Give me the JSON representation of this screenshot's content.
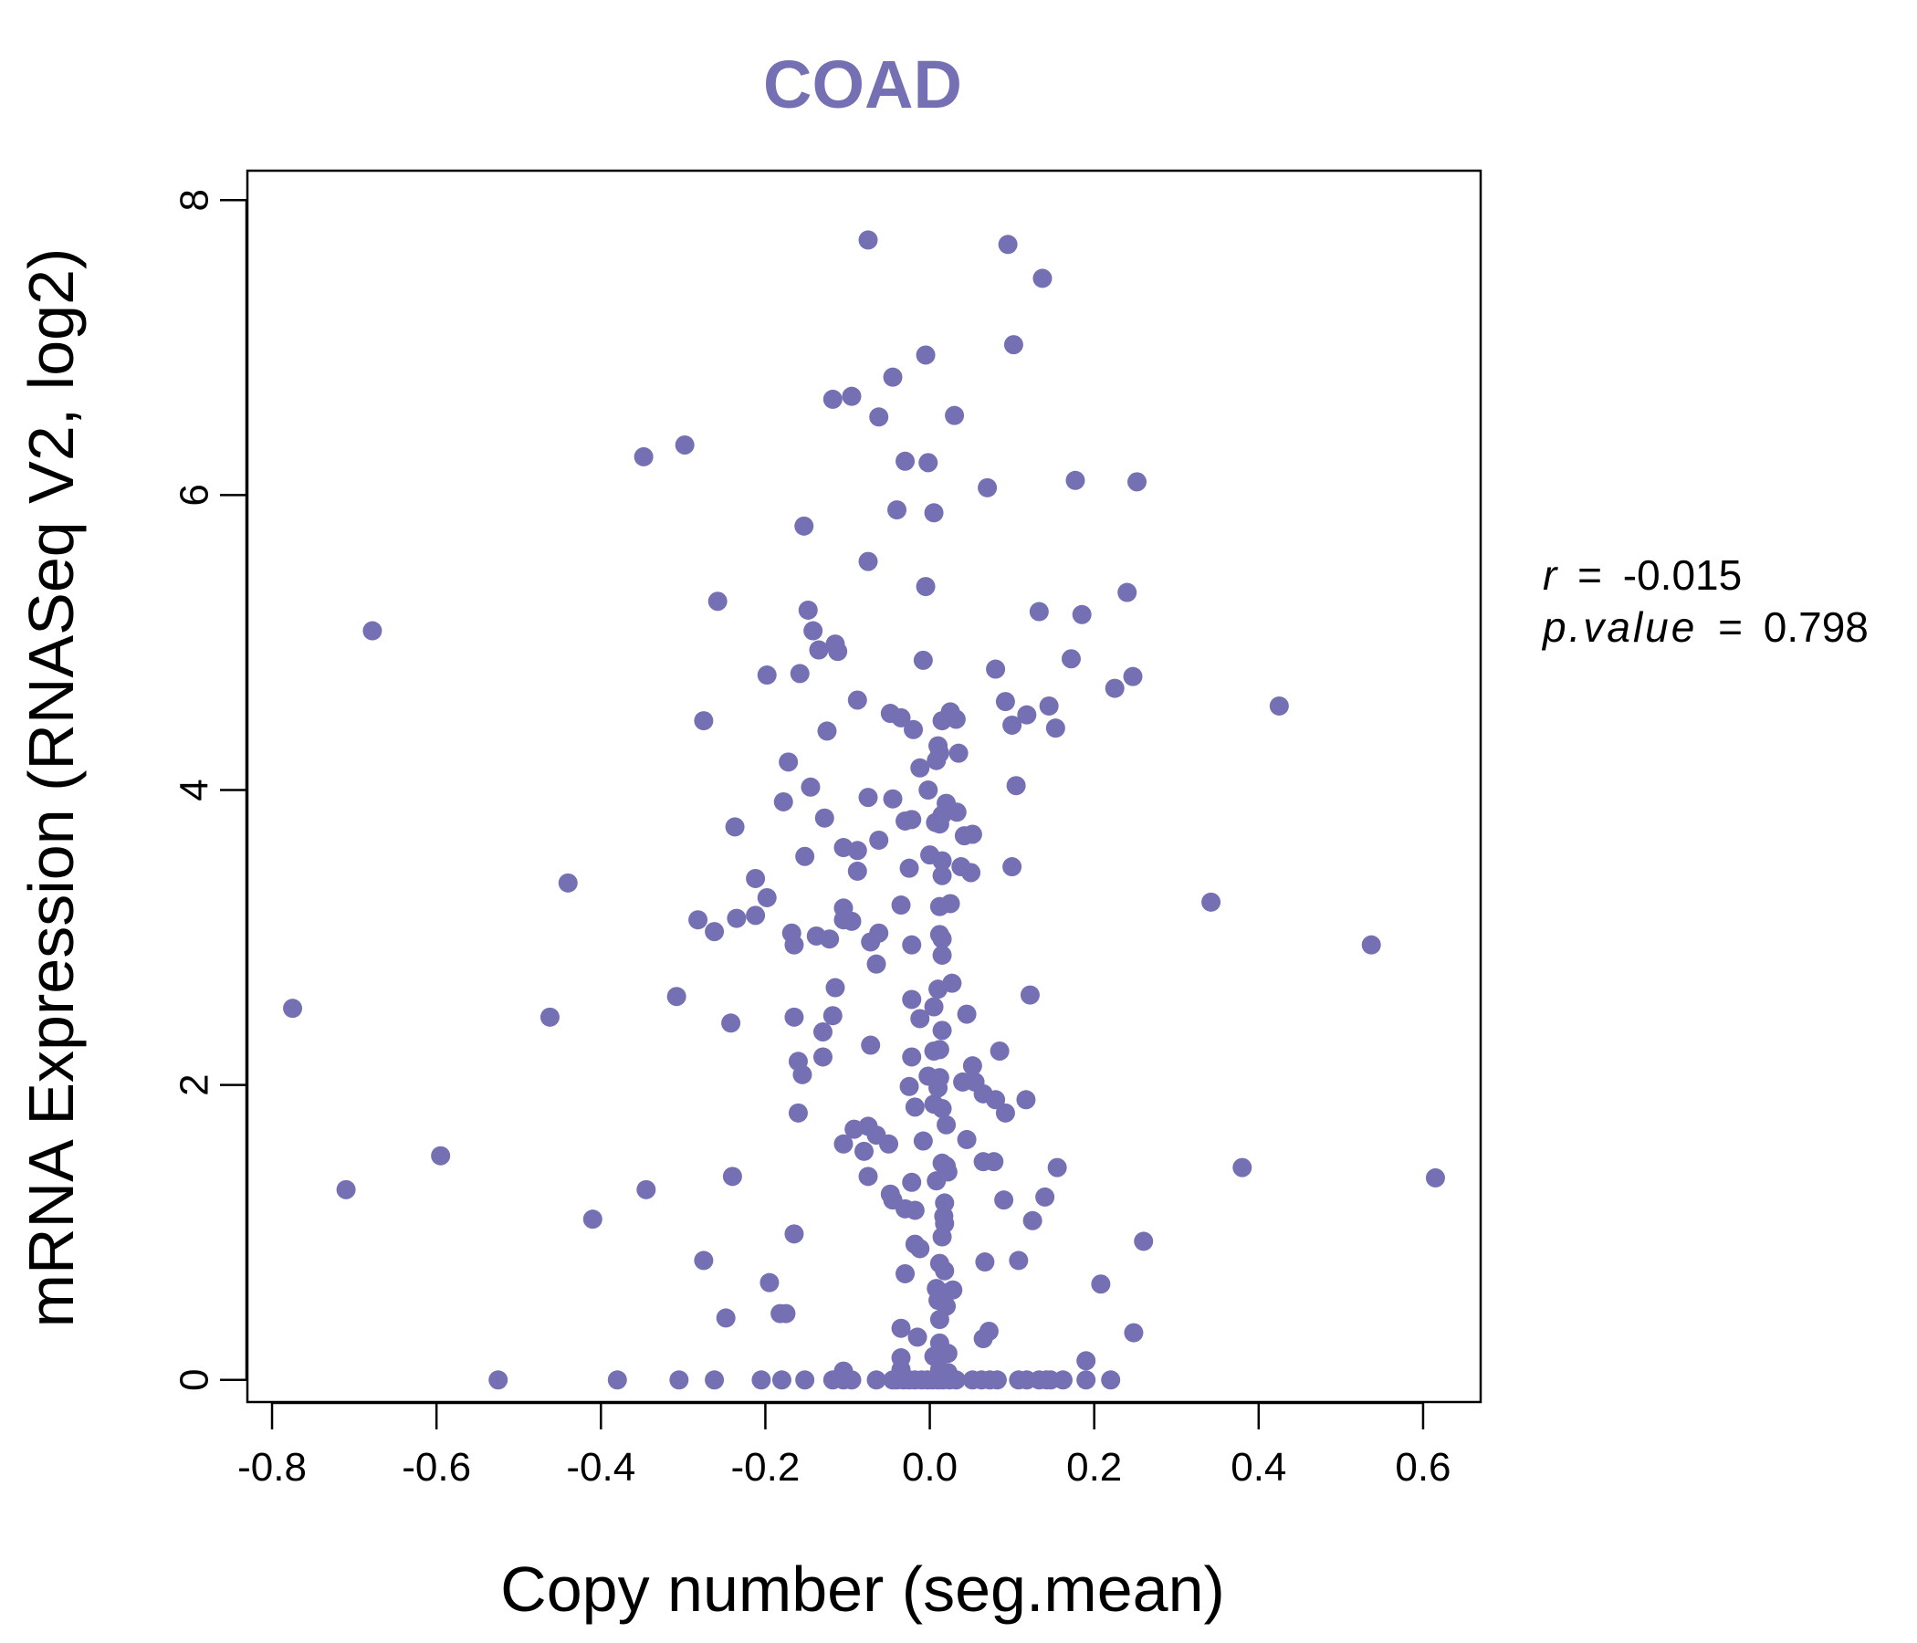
{
  "chart_data": {
    "type": "scatter",
    "title": "COAD",
    "xlabel": "Copy number (seg.mean)",
    "ylabel": "mRNA Expression (RNASeq V2, log2)",
    "xlim": [
      -0.83,
      0.67
    ],
    "ylim": [
      -0.15,
      8.2
    ],
    "x_ticks": [
      -0.8,
      -0.6,
      -0.4,
      -0.2,
      0.0,
      0.2,
      0.4,
      0.6
    ],
    "x_tick_labels": [
      "-0.8",
      "-0.6",
      "-0.4",
      "-0.2",
      "0.0",
      "0.2",
      "0.4",
      "0.6"
    ],
    "y_ticks": [
      0,
      2,
      4,
      6,
      8
    ],
    "y_tick_labels": [
      "0",
      "2",
      "4",
      "6",
      "8"
    ],
    "point_color": "#7570b3",
    "grid": false,
    "annotations": {
      "r_label": "r",
      "r_value": "-0.015",
      "p_label": "p.value",
      "p_value": "0.798",
      "equals": "="
    },
    "points": [
      [
        -0.075,
        7.73
      ],
      [
        0.095,
        7.7
      ],
      [
        0.137,
        7.47
      ],
      [
        0.102,
        7.02
      ],
      [
        -0.005,
        6.95
      ],
      [
        -0.045,
        6.8
      ],
      [
        -0.095,
        6.67
      ],
      [
        -0.118,
        6.65
      ],
      [
        -0.062,
        6.53
      ],
      [
        0.03,
        6.54
      ],
      [
        -0.298,
        6.34
      ],
      [
        -0.348,
        6.26
      ],
      [
        -0.03,
        6.23
      ],
      [
        -0.002,
        6.22
      ],
      [
        0.177,
        6.1
      ],
      [
        0.252,
        6.09
      ],
      [
        0.07,
        6.05
      ],
      [
        -0.04,
        5.9
      ],
      [
        0.005,
        5.88
      ],
      [
        -0.153,
        5.79
      ],
      [
        -0.075,
        5.55
      ],
      [
        -0.005,
        5.38
      ],
      [
        0.24,
        5.34
      ],
      [
        -0.258,
        5.28
      ],
      [
        -0.148,
        5.22
      ],
      [
        0.133,
        5.21
      ],
      [
        0.185,
        5.19
      ],
      [
        -0.678,
        5.08
      ],
      [
        -0.142,
        5.08
      ],
      [
        -0.115,
        4.99
      ],
      [
        -0.135,
        4.95
      ],
      [
        -0.112,
        4.94
      ],
      [
        -0.008,
        4.88
      ],
      [
        0.172,
        4.89
      ],
      [
        0.08,
        4.82
      ],
      [
        -0.198,
        4.78
      ],
      [
        -0.158,
        4.79
      ],
      [
        0.247,
        4.77
      ],
      [
        0.225,
        4.69
      ],
      [
        -0.088,
        4.61
      ],
      [
        0.092,
        4.6
      ],
      [
        0.145,
        4.57
      ],
      [
        0.425,
        4.57
      ],
      [
        -0.048,
        4.52
      ],
      [
        0.025,
        4.53
      ],
      [
        -0.035,
        4.49
      ],
      [
        0.118,
        4.51
      ],
      [
        -0.275,
        4.47
      ],
      [
        0.015,
        4.47
      ],
      [
        0.032,
        4.48
      ],
      [
        0.1,
        4.44
      ],
      [
        -0.02,
        4.41
      ],
      [
        0.153,
        4.42
      ],
      [
        -0.125,
        4.4
      ],
      [
        0.01,
        4.3
      ],
      [
        0.012,
        4.25
      ],
      [
        0.035,
        4.25
      ],
      [
        0.008,
        4.2
      ],
      [
        -0.172,
        4.19
      ],
      [
        -0.012,
        4.15
      ],
      [
        0.105,
        4.03
      ],
      [
        -0.145,
        4.02
      ],
      [
        -0.002,
        4.0
      ],
      [
        -0.075,
        3.95
      ],
      [
        -0.045,
        3.94
      ],
      [
        -0.178,
        3.92
      ],
      [
        0.02,
        3.91
      ],
      [
        0.033,
        3.85
      ],
      [
        0.015,
        3.83
      ],
      [
        -0.128,
        3.81
      ],
      [
        -0.03,
        3.79
      ],
      [
        -0.022,
        3.8
      ],
      [
        0.007,
        3.78
      ],
      [
        0.012,
        3.77
      ],
      [
        -0.237,
        3.75
      ],
      [
        0.052,
        3.7
      ],
      [
        0.042,
        3.69
      ],
      [
        -0.062,
        3.66
      ],
      [
        -0.105,
        3.61
      ],
      [
        -0.088,
        3.59
      ],
      [
        -0.0,
        3.56
      ],
      [
        -0.152,
        3.55
      ],
      [
        0.015,
        3.52
      ],
      [
        -0.025,
        3.47
      ],
      [
        0.038,
        3.48
      ],
      [
        0.1,
        3.48
      ],
      [
        -0.088,
        3.45
      ],
      [
        0.05,
        3.44
      ],
      [
        0.015,
        3.42
      ],
      [
        -0.212,
        3.4
      ],
      [
        -0.44,
        3.37
      ],
      [
        0.342,
        3.24
      ],
      [
        -0.198,
        3.27
      ],
      [
        0.025,
        3.23
      ],
      [
        -0.035,
        3.22
      ],
      [
        0.012,
        3.21
      ],
      [
        -0.105,
        3.2
      ],
      [
        -0.105,
        3.12
      ],
      [
        -0.095,
        3.11
      ],
      [
        -0.282,
        3.12
      ],
      [
        -0.235,
        3.13
      ],
      [
        -0.212,
        3.15
      ],
      [
        -0.262,
        3.04
      ],
      [
        -0.168,
        3.03
      ],
      [
        -0.138,
        3.01
      ],
      [
        -0.122,
        2.99
      ],
      [
        -0.062,
        3.03
      ],
      [
        0.012,
        3.02
      ],
      [
        0.015,
        2.99
      ],
      [
        -0.072,
        2.97
      ],
      [
        -0.022,
        2.95
      ],
      [
        -0.165,
        2.95
      ],
      [
        0.537,
        2.95
      ],
      [
        0.015,
        2.88
      ],
      [
        -0.065,
        2.82
      ],
      [
        0.027,
        2.69
      ],
      [
        -0.115,
        2.66
      ],
      [
        0.01,
        2.65
      ],
      [
        0.122,
        2.61
      ],
      [
        -0.308,
        2.6
      ],
      [
        -0.022,
        2.58
      ],
      [
        0.005,
        2.53
      ],
      [
        -0.775,
        2.52
      ],
      [
        0.045,
        2.48
      ],
      [
        -0.118,
        2.47
      ],
      [
        -0.165,
        2.46
      ],
      [
        -0.462,
        2.46
      ],
      [
        -0.012,
        2.45
      ],
      [
        -0.242,
        2.42
      ],
      [
        0.015,
        2.37
      ],
      [
        -0.13,
        2.36
      ],
      [
        -0.072,
        2.27
      ],
      [
        0.085,
        2.23
      ],
      [
        0.012,
        2.24
      ],
      [
        0.005,
        2.23
      ],
      [
        -0.13,
        2.19
      ],
      [
        -0.022,
        2.19
      ],
      [
        -0.16,
        2.16
      ],
      [
        0.052,
        2.13
      ],
      [
        -0.155,
        2.07
      ],
      [
        -0.002,
        2.06
      ],
      [
        0.012,
        2.05
      ],
      [
        0.04,
        2.02
      ],
      [
        0.055,
        2.02
      ],
      [
        -0.025,
        1.99
      ],
      [
        0.01,
        1.98
      ],
      [
        0.065,
        1.94
      ],
      [
        0.08,
        1.9
      ],
      [
        0.117,
        1.9
      ],
      [
        0.005,
        1.87
      ],
      [
        -0.018,
        1.85
      ],
      [
        0.015,
        1.84
      ],
      [
        0.092,
        1.81
      ],
      [
        -0.16,
        1.81
      ],
      [
        0.02,
        1.73
      ],
      [
        -0.075,
        1.72
      ],
      [
        -0.092,
        1.7
      ],
      [
        -0.065,
        1.66
      ],
      [
        0.045,
        1.63
      ],
      [
        -0.008,
        1.62
      ],
      [
        -0.105,
        1.6
      ],
      [
        -0.05,
        1.6
      ],
      [
        -0.08,
        1.55
      ],
      [
        -0.595,
        1.52
      ],
      [
        0.065,
        1.48
      ],
      [
        0.078,
        1.48
      ],
      [
        0.015,
        1.47
      ],
      [
        0.155,
        1.44
      ],
      [
        0.38,
        1.44
      ],
      [
        0.02,
        1.45
      ],
      [
        0.022,
        1.41
      ],
      [
        -0.075,
        1.38
      ],
      [
        -0.24,
        1.38
      ],
      [
        0.615,
        1.37
      ],
      [
        0.008,
        1.35
      ],
      [
        -0.022,
        1.34
      ],
      [
        -0.345,
        1.29
      ],
      [
        -0.71,
        1.29
      ],
      [
        -0.048,
        1.26
      ],
      [
        0.14,
        1.24
      ],
      [
        0.09,
        1.22
      ],
      [
        -0.045,
        1.22
      ],
      [
        0.018,
        1.2
      ],
      [
        -0.03,
        1.16
      ],
      [
        -0.018,
        1.15
      ],
      [
        0.017,
        1.11
      ],
      [
        -0.41,
        1.09
      ],
      [
        0.125,
        1.08
      ],
      [
        0.018,
        1.06
      ],
      [
        -0.165,
        0.99
      ],
      [
        0.015,
        0.97
      ],
      [
        0.26,
        0.94
      ],
      [
        -0.018,
        0.92
      ],
      [
        -0.012,
        0.89
      ],
      [
        -0.275,
        0.81
      ],
      [
        0.067,
        0.8
      ],
      [
        0.108,
        0.81
      ],
      [
        0.012,
        0.79
      ],
      [
        0.018,
        0.74
      ],
      [
        -0.03,
        0.72
      ],
      [
        0.208,
        0.65
      ],
      [
        -0.195,
        0.66
      ],
      [
        0.008,
        0.62
      ],
      [
        0.028,
        0.61
      ],
      [
        0.018,
        0.59
      ],
      [
        0.01,
        0.54
      ],
      [
        0.02,
        0.5
      ],
      [
        -0.182,
        0.45
      ],
      [
        -0.175,
        0.45
      ],
      [
        -0.248,
        0.42
      ],
      [
        0.012,
        0.41
      ],
      [
        -0.035,
        0.35
      ],
      [
        0.248,
        0.32
      ],
      [
        0.072,
        0.33
      ],
      [
        -0.015,
        0.29
      ],
      [
        0.065,
        0.28
      ],
      [
        0.012,
        0.25
      ],
      [
        0.022,
        0.18
      ],
      [
        0.005,
        0.16
      ],
      [
        -0.035,
        0.15
      ],
      [
        0.19,
        0.13
      ],
      [
        -0.035,
        0.07
      ],
      [
        0.012,
        0.07
      ],
      [
        -0.105,
        0.06
      ],
      [
        0.022,
        0.05
      ],
      [
        -0.525,
        0.0
      ],
      [
        -0.38,
        0.0
      ],
      [
        -0.305,
        0.0
      ],
      [
        -0.262,
        0.0
      ],
      [
        -0.205,
        0.0
      ],
      [
        -0.18,
        0.0
      ],
      [
        -0.152,
        0.0
      ],
      [
        -0.118,
        0.0
      ],
      [
        -0.105,
        0.0
      ],
      [
        -0.095,
        0.0
      ],
      [
        -0.065,
        0.0
      ],
      [
        -0.045,
        0.0
      ],
      [
        -0.04,
        0.0
      ],
      [
        -0.032,
        0.0
      ],
      [
        -0.025,
        0.0
      ],
      [
        -0.018,
        0.0
      ],
      [
        -0.01,
        0.0
      ],
      [
        -0.003,
        0.0
      ],
      [
        0.003,
        0.0
      ],
      [
        0.01,
        0.0
      ],
      [
        0.016,
        0.0
      ],
      [
        0.024,
        0.0
      ],
      [
        0.032,
        0.0
      ],
      [
        0.052,
        0.0
      ],
      [
        0.063,
        0.0
      ],
      [
        0.073,
        0.0
      ],
      [
        0.082,
        0.0
      ],
      [
        0.108,
        0.0
      ],
      [
        0.118,
        0.0
      ],
      [
        0.133,
        0.0
      ],
      [
        0.142,
        0.0
      ],
      [
        0.147,
        0.0
      ],
      [
        0.162,
        0.0
      ],
      [
        0.19,
        0.0
      ],
      [
        0.22,
        0.0
      ]
    ]
  }
}
